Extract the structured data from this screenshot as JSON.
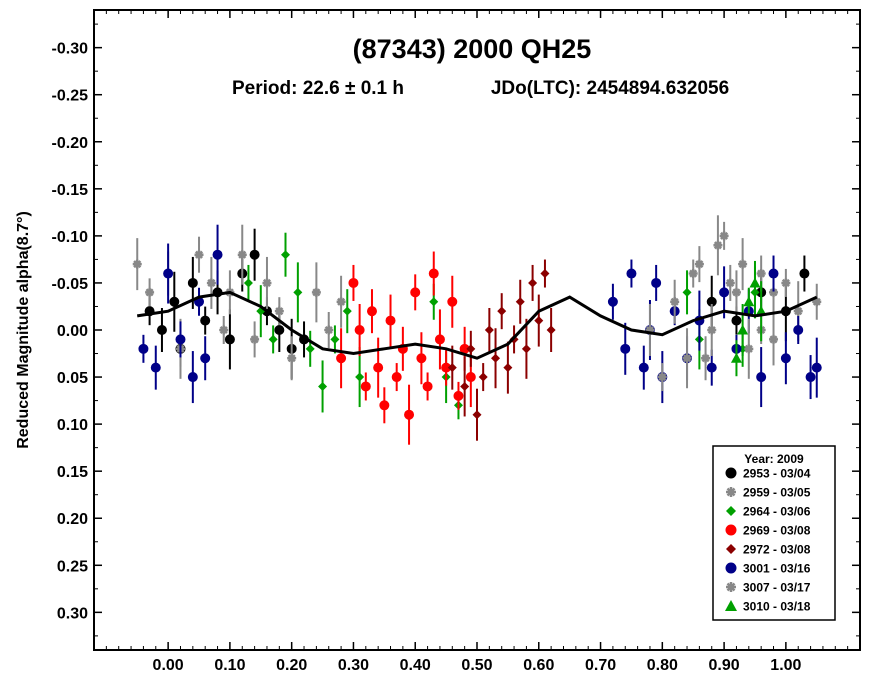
{
  "chart_data": {
    "type": "scatter",
    "title": "(87343) 2000 QH25",
    "subtitle_period": "Period: 22.6 ± 0.1 h",
    "subtitle_epoch": "JDo(LTC): 2454894.632056",
    "xlabel": "",
    "ylabel": "Reduced Magnitude alpha(8.7°)",
    "xlim": [
      -0.12,
      1.12
    ],
    "ylim": [
      -0.34,
      0.34
    ],
    "y_inverted": true,
    "grid": false,
    "legend_position": "bottom-right",
    "legend_title": "Year: 2009",
    "x_ticks": [
      "0.00",
      "0.10",
      "0.20",
      "0.30",
      "0.40",
      "0.50",
      "0.60",
      "0.70",
      "0.80",
      "0.90",
      "1.00"
    ],
    "x_tick_values": [
      0.0,
      0.1,
      0.2,
      0.3,
      0.4,
      0.5,
      0.6,
      0.7,
      0.8,
      0.9,
      1.0
    ],
    "y_ticks": [
      "-0.30",
      "-0.25",
      "-0.20",
      "-0.15",
      "-0.10",
      "-0.05",
      "0.00",
      "0.05",
      "0.10",
      "0.15",
      "0.20",
      "0.25",
      "0.30"
    ],
    "y_tick_values": [
      -0.3,
      -0.25,
      -0.2,
      -0.15,
      -0.1,
      -0.05,
      0.0,
      0.05,
      0.1,
      0.15,
      0.2,
      0.25,
      0.3
    ],
    "fit_curve": {
      "x": [
        -0.05,
        0.0,
        0.05,
        0.1,
        0.15,
        0.2,
        0.25,
        0.3,
        0.35,
        0.4,
        0.45,
        0.5,
        0.55,
        0.6,
        0.65,
        0.7,
        0.75,
        0.8,
        0.85,
        0.9,
        0.95,
        1.0,
        1.05
      ],
      "y": [
        -0.015,
        -0.02,
        -0.035,
        -0.04,
        -0.025,
        0.0,
        0.02,
        0.025,
        0.02,
        0.015,
        0.02,
        0.03,
        0.015,
        -0.02,
        -0.035,
        -0.015,
        0.0,
        0.005,
        -0.01,
        -0.02,
        -0.015,
        -0.02,
        -0.035
      ]
    },
    "series": [
      {
        "name": "2953 - 03/04",
        "color": "#000000",
        "marker": "circle",
        "x": [
          -0.03,
          -0.01,
          0.01,
          0.02,
          0.04,
          0.06,
          0.08,
          0.1,
          0.12,
          0.14,
          0.16,
          0.18,
          0.2,
          0.22,
          0.88,
          0.92,
          0.96,
          1.0,
          1.03
        ],
        "y": [
          -0.02,
          0.0,
          -0.03,
          0.02,
          -0.05,
          -0.01,
          -0.04,
          0.01,
          -0.06,
          -0.08,
          -0.02,
          0.0,
          0.02,
          0.01,
          -0.03,
          -0.01,
          -0.04,
          -0.02,
          -0.06
        ]
      },
      {
        "name": "2959 - 03/05",
        "color": "#888888",
        "marker": "asterisk",
        "x": [
          -0.05,
          -0.03,
          0.0,
          0.02,
          0.05,
          0.07,
          0.09,
          0.1,
          0.12,
          0.14,
          0.16,
          0.18,
          0.2,
          0.24,
          0.26,
          0.28,
          0.85,
          0.87,
          0.89,
          0.91,
          0.93,
          0.96,
          0.98,
          1.02,
          1.05
        ],
        "y": [
          -0.07,
          -0.04,
          -0.06,
          0.02,
          -0.08,
          -0.05,
          0.0,
          -0.04,
          -0.08,
          0.01,
          -0.05,
          -0.02,
          0.03,
          -0.04,
          0.0,
          -0.03,
          -0.06,
          0.03,
          -0.09,
          -0.05,
          -0.07,
          0.0,
          -0.04,
          -0.02,
          -0.03
        ]
      },
      {
        "name": "2964 - 03/06",
        "color": "#00a000",
        "marker": "diamond",
        "x": [
          0.13,
          0.15,
          0.17,
          0.19,
          0.21,
          0.23,
          0.25,
          0.27,
          0.29,
          0.31,
          0.43,
          0.45,
          0.47,
          0.84,
          0.86,
          0.93,
          0.95
        ],
        "y": [
          -0.05,
          -0.02,
          0.01,
          -0.08,
          -0.04,
          0.02,
          0.06,
          0.01,
          -0.02,
          0.05,
          -0.03,
          0.05,
          0.08,
          -0.04,
          0.01,
          0.02,
          -0.04
        ]
      },
      {
        "name": "2969 - 03/08",
        "color": "#ff0000",
        "marker": "circle",
        "x": [
          0.28,
          0.3,
          0.31,
          0.32,
          0.33,
          0.34,
          0.35,
          0.36,
          0.37,
          0.38,
          0.39,
          0.4,
          0.41,
          0.42,
          0.43,
          0.44,
          0.45,
          0.46,
          0.47,
          0.48,
          0.49
        ],
        "y": [
          0.03,
          -0.05,
          0.0,
          0.06,
          -0.02,
          0.04,
          0.08,
          -0.01,
          0.05,
          0.02,
          0.09,
          -0.04,
          0.03,
          0.06,
          -0.06,
          0.01,
          0.04,
          -0.03,
          0.07,
          0.02,
          0.05
        ]
      },
      {
        "name": "2972 - 03/08",
        "color": "#8b0000",
        "marker": "diamond",
        "x": [
          0.46,
          0.48,
          0.49,
          0.5,
          0.51,
          0.52,
          0.53,
          0.54,
          0.55,
          0.56,
          0.57,
          0.58,
          0.59,
          0.6,
          0.61,
          0.62
        ],
        "y": [
          0.04,
          0.06,
          0.02,
          0.09,
          0.05,
          0.0,
          0.03,
          -0.02,
          0.04,
          0.01,
          -0.03,
          0.02,
          -0.05,
          -0.01,
          -0.06,
          0.0
        ]
      },
      {
        "name": "3001 - 03/16",
        "color": "#000088",
        "marker": "circle",
        "x": [
          -0.04,
          -0.02,
          0.0,
          0.02,
          0.04,
          0.05,
          0.06,
          0.08,
          0.72,
          0.74,
          0.75,
          0.77,
          0.78,
          0.79,
          0.8,
          0.82,
          0.84,
          0.86,
          0.88,
          0.9,
          0.92,
          0.94,
          0.96,
          0.98,
          1.0,
          1.02,
          1.04,
          1.05
        ],
        "y": [
          0.02,
          0.04,
          -0.06,
          0.01,
          0.05,
          -0.03,
          0.03,
          -0.08,
          -0.03,
          0.02,
          -0.06,
          0.04,
          0.0,
          -0.05,
          0.05,
          -0.02,
          0.03,
          -0.01,
          0.04,
          -0.04,
          0.02,
          -0.02,
          0.05,
          -0.06,
          0.03,
          0.0,
          0.05,
          0.04
        ]
      },
      {
        "name": "3007 - 03/17",
        "color": "#888888",
        "marker": "asterisk",
        "x": [
          0.78,
          0.8,
          0.82,
          0.84,
          0.86,
          0.88,
          0.9,
          0.92,
          0.94,
          0.96,
          0.98,
          1.0
        ],
        "y": [
          0.0,
          0.05,
          -0.03,
          0.03,
          -0.07,
          0.0,
          -0.1,
          -0.04,
          0.02,
          -0.06,
          0.01,
          -0.05
        ]
      },
      {
        "name": "3010 - 03/18",
        "color": "#00a000",
        "marker": "triangle",
        "x": [
          0.92,
          0.93,
          0.94,
          0.95,
          0.96
        ],
        "y": [
          0.03,
          0.0,
          -0.03,
          -0.05,
          -0.02
        ]
      }
    ]
  }
}
